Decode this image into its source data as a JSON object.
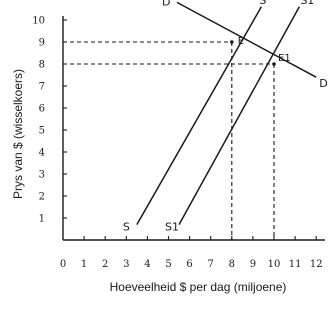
{
  "chart_data": {
    "type": "line",
    "title": "",
    "xlabel": "Hoeveelheid $ per dag (miljoene)",
    "ylabel": "Prys van $ (wisselkoers)",
    "xlim": [
      0,
      12
    ],
    "ylim": [
      0,
      10
    ],
    "x_ticks": [
      0,
      1,
      2,
      3,
      4,
      5,
      6,
      7,
      8,
      9,
      10,
      11,
      12
    ],
    "y_ticks": [
      1,
      2,
      3,
      4,
      5,
      6,
      7,
      8,
      9,
      10
    ],
    "grid": false,
    "series": [
      {
        "name": "D",
        "start_label": "D",
        "end_label": "D",
        "points": [
          [
            5.4,
            10.8
          ],
          [
            12.0,
            7.4
          ]
        ]
      },
      {
        "name": "S",
        "start_label": "S",
        "end_label": "S",
        "points": [
          [
            3.5,
            0.7
          ],
          [
            9.4,
            10.6
          ]
        ]
      },
      {
        "name": "S1",
        "start_label": "S1",
        "end_label": "S1",
        "points": [
          [
            5.5,
            0.7
          ],
          [
            11.2,
            10.6
          ]
        ]
      }
    ],
    "equilibria": [
      {
        "label": "E",
        "x": 8,
        "y": 9
      },
      {
        "label": "E1",
        "x": 10,
        "y": 8
      }
    ]
  }
}
